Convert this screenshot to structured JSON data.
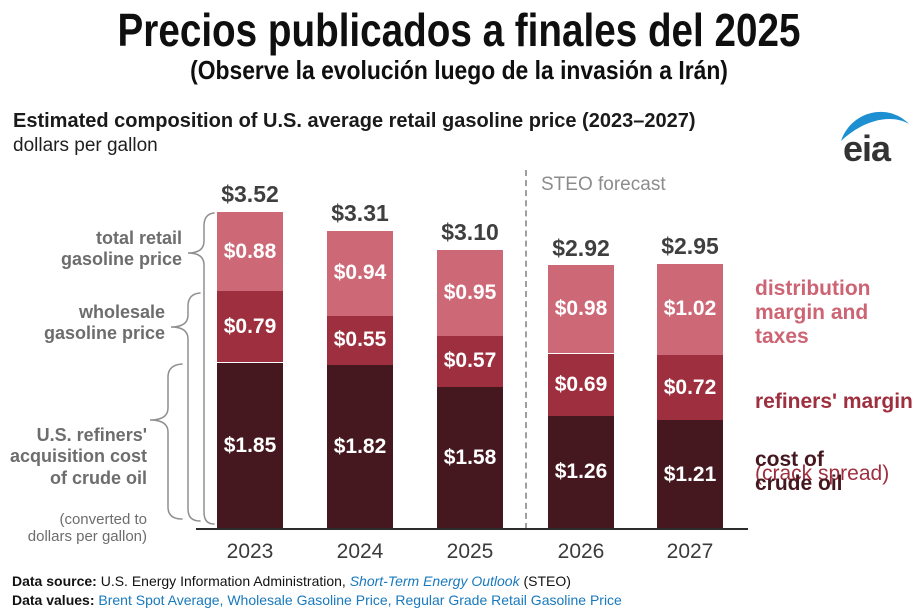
{
  "banner": {
    "title": "Precios publicados a finales del 2025",
    "subtitle": "(Observe la evolución luego de la invasión a Irán)"
  },
  "chart_header": {
    "title": "Estimated composition of U.S. average retail gasoline price (2023–2027)",
    "units": "dollars per gallon",
    "logo": "eia",
    "logo_blue": "#1e8fd0"
  },
  "annotations": {
    "left": [
      {
        "text": "total retail\ngasoline price"
      },
      {
        "text": "wholesale\ngasoline price"
      },
      {
        "text": "U.S. refiners'\nacquisition cost\nof crude oil",
        "subtext": "(converted to\ndollars per gallon)"
      }
    ]
  },
  "legend": {
    "distribution": {
      "text": "distribution\nmargin and\ntaxes",
      "color": "#cd6474"
    },
    "refiners": {
      "bold": "refiners' margin",
      "normal": "(crack spread)",
      "color": "#9e2f3e"
    },
    "crude": {
      "text": "cost of\ncrude oil",
      "color": "#451820"
    }
  },
  "chart_data": {
    "type": "bar",
    "stacked": true,
    "title": "Estimated composition of U.S. average retail gasoline price (2023–2027)",
    "ylabel": "dollars per gallon",
    "categories": [
      "2023",
      "2024",
      "2025",
      "2026",
      "2027"
    ],
    "series": [
      {
        "key": "crude",
        "name": "cost of crude oil",
        "color": "#45171f",
        "values": [
          1.85,
          1.82,
          1.58,
          1.26,
          1.21
        ]
      },
      {
        "key": "refiners",
        "name": "refiners' margin (crack spread)",
        "color": "#9e2f3e",
        "values": [
          0.79,
          0.55,
          0.57,
          0.69,
          0.72
        ]
      },
      {
        "key": "distribution",
        "name": "distribution margin and taxes",
        "color": "#cd6877",
        "values": [
          0.88,
          0.94,
          0.95,
          0.98,
          1.02
        ]
      }
    ],
    "totals": [
      3.52,
      3.31,
      3.1,
      2.92,
      2.95
    ],
    "value_prefix": "$",
    "forecast_label": "STEO forecast",
    "forecast_from_category": "2026",
    "grid": false,
    "legend_position": "right"
  },
  "footer": {
    "source_label": "Data source:",
    "source_org": "U.S. Energy Information Administration,",
    "source_link": "Short-Term Energy Outlook",
    "source_suffix": "(STEO)",
    "values_label": "Data values:",
    "values_links": [
      "Brent Spot Average,",
      "Wholesale Gasoline Price,",
      "Regular Grade Retail Gasoline Price"
    ],
    "link_color": "#1879bd"
  }
}
